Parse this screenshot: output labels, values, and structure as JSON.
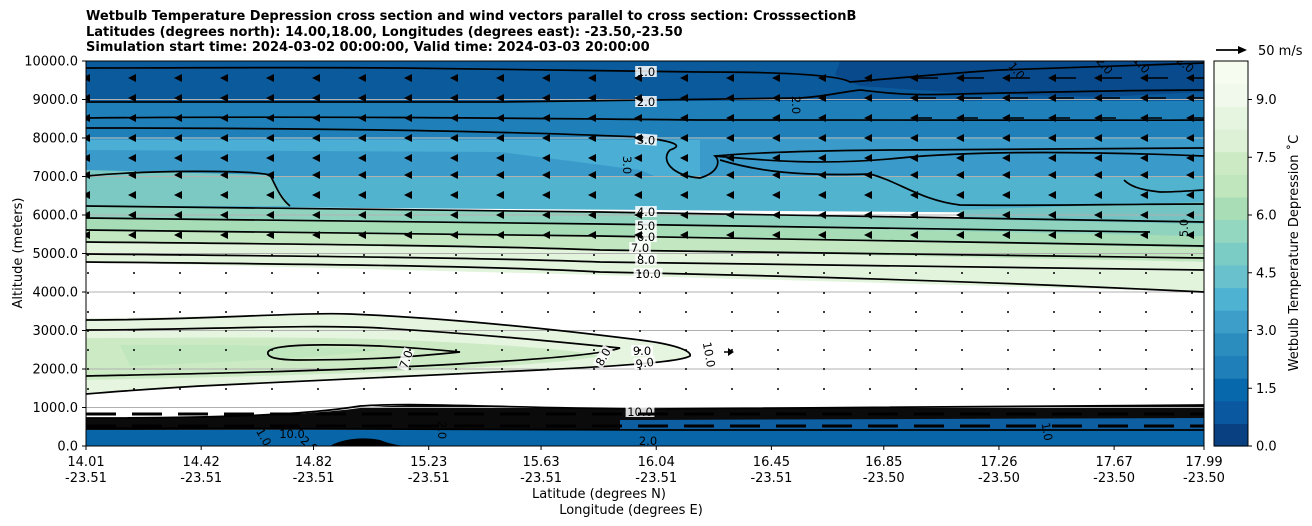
{
  "chart_data": {
    "type": "contour",
    "title": [
      "Wetbulb Temperature Depression cross section and wind vectors parallel to cross section: CrosssectionB",
      "Latitudes (degrees north): 14.00,18.00, Longitudes (degrees east): -23.50,-23.50",
      "Simulation start time: 2024-03-02 00:00:00, Valid time: 2024-03-03 20:00:00"
    ],
    "ylabel": "Altitude (meters)",
    "xlabel": "Latitude (degrees N)",
    "xlabel2": "Longitude (degrees E)",
    "ylim": [
      0,
      10000
    ],
    "y_ticks": [
      "0.0",
      "1000.0",
      "2000.0",
      "3000.0",
      "4000.0",
      "5000.0",
      "6000.0",
      "7000.0",
      "8000.0",
      "9000.0",
      "10000.0"
    ],
    "x_ticks": [
      {
        "lat": "14.01",
        "lon": "-23.51"
      },
      {
        "lat": "14.42",
        "lon": "-23.51"
      },
      {
        "lat": "14.82",
        "lon": "-23.51"
      },
      {
        "lat": "15.23",
        "lon": "-23.51"
      },
      {
        "lat": "15.63",
        "lon": "-23.51"
      },
      {
        "lat": "16.04",
        "lon": "-23.51"
      },
      {
        "lat": "16.45",
        "lon": "-23.51"
      },
      {
        "lat": "16.85",
        "lon": "-23.50"
      },
      {
        "lat": "17.26",
        "lon": "-23.50"
      },
      {
        "lat": "17.67",
        "lon": "-23.50"
      },
      {
        "lat": "17.99",
        "lon": "-23.50"
      }
    ],
    "grid": "horizontal",
    "colorbar": {
      "label": "Wetbulb Temperature Depression $^\\circ$C",
      "label_display": "Wetbulb Temperature Depression ˚C",
      "range": [
        0,
        10
      ],
      "ticks": [
        "0.0",
        "1.5",
        "3.0",
        "4.5",
        "6.0",
        "7.5",
        "9.0"
      ],
      "colors": [
        "#084081",
        "#0a58a0",
        "#0868ac",
        "#1f7fb8",
        "#2b8cbe",
        "#3d9ec9",
        "#4eb3d3",
        "#68c1cc",
        "#7bccc4",
        "#93d7c0",
        "#a8ddb5",
        "#bfe6bd",
        "#ccebc5",
        "#ddf1d6",
        "#e6f5e0",
        "#f0f9ec",
        "#f7fcf0"
      ]
    },
    "quiver_key": {
      "label": "50 m/s"
    },
    "contour_labels": [
      "1.0",
      "2.0",
      "3.0",
      "4.0",
      "5.0",
      "6.0",
      "7.0",
      "8.0",
      "9.0",
      "10.0"
    ],
    "altitude_profile": [
      {
        "altitude_m": 0,
        "depression_c": 1.0
      },
      {
        "altitude_m": 500,
        "depression_c": 2.0
      },
      {
        "altitude_m": 1000,
        "depression_c": 10.0
      },
      {
        "altitude_m": 2000,
        "depression_c": 9.0
      },
      {
        "altitude_m": 3000,
        "depression_c": 10.0
      },
      {
        "altitude_m": 4000,
        "depression_c": 10.0
      },
      {
        "altitude_m": 5000,
        "depression_c": 7.0
      },
      {
        "altitude_m": 6000,
        "depression_c": 4.0
      },
      {
        "altitude_m": 7000,
        "depression_c": 3.0
      },
      {
        "altitude_m": 8000,
        "depression_c": 3.0
      },
      {
        "altitude_m": 9000,
        "depression_c": 2.0
      },
      {
        "altitude_m": 10000,
        "depression_c": 1.0
      }
    ]
  }
}
